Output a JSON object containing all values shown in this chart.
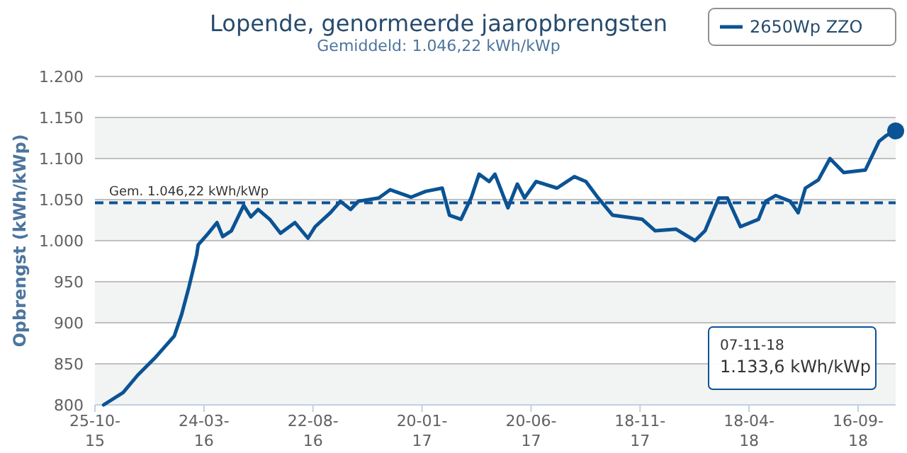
{
  "chart_data": {
    "type": "line",
    "title": "Lopende, genormeerde jaaropbrengsten",
    "subtitle": "Gemiddeld: 1.046,22 kWh/kWp",
    "ylabel": "Opbrengst (kWh/kWp)",
    "xlim": [
      "2015-10-25",
      "2018-11-07"
    ],
    "xticks": [
      {
        "value": "2015-10-25",
        "label": "25-10-\n15"
      },
      {
        "value": "2016-03-24",
        "label": "24-03-\n16"
      },
      {
        "value": "2016-08-22",
        "label": "22-08-\n16"
      },
      {
        "value": "2017-01-20",
        "label": "20-01-\n17"
      },
      {
        "value": "2017-06-20",
        "label": "20-06-\n17"
      },
      {
        "value": "2017-11-18",
        "label": "18-11-\n17"
      },
      {
        "value": "2018-04-18",
        "label": "18-04-\n18"
      },
      {
        "value": "2018-09-16",
        "label": "16-09-\n18"
      }
    ],
    "ylim": [
      800,
      1200
    ],
    "yticks": [
      800,
      850,
      900,
      950,
      {
        "value": 1000,
        "label": "1.000"
      },
      {
        "value": 1050,
        "label": "1.050"
      },
      {
        "value": 1100,
        "label": "1.100"
      },
      {
        "value": 1150,
        "label": "1.150"
      },
      {
        "value": 1200,
        "label": "1.200"
      }
    ],
    "grid": "y",
    "legend": "top right",
    "line_style": "solid",
    "bands": [
      {
        "axis": "y",
        "from": 800,
        "to": 850,
        "color": "#f2f3f3"
      },
      {
        "axis": "y",
        "from": 900,
        "to": 950,
        "color": "#f2f3f3"
      },
      {
        "axis": "y",
        "from": 1000,
        "to": 1050,
        "color": "#f2f3f3"
      },
      {
        "axis": "y",
        "from": 1100,
        "to": 1150,
        "color": "#f2f3f3"
      }
    ],
    "ref_lines": [
      {
        "axis": "y",
        "value": 1046.22,
        "label": "Gem. 1.046,22 kWh/kWp",
        "color": "#0b5394",
        "line_style": "dashed"
      }
    ],
    "annotations": [
      "07-11-18\n1.133,6 kWh/kWp"
    ],
    "series": [
      {
        "name": "2650Wp ZZO",
        "color": "#0b5394",
        "x": [
          "2015-11-06",
          "2015-12-03",
          "2015-12-23",
          "2016-01-17",
          "2016-02-12",
          "2016-02-22",
          "2016-03-03",
          "2016-03-14",
          "2016-03-16",
          "2016-03-30",
          "2016-04-11",
          "2016-04-19",
          "2016-05-01",
          "2016-05-18",
          "2016-05-28",
          "2016-06-07",
          "2016-06-23",
          "2016-07-08",
          "2016-07-28",
          "2016-08-15",
          "2016-08-25",
          "2016-09-15",
          "2016-09-29",
          "2016-10-13",
          "2016-10-24",
          "2016-11-21",
          "2016-12-07",
          "2017-01-05",
          "2017-01-25",
          "2017-02-17",
          "2017-02-27",
          "2017-03-15",
          "2017-03-29",
          "2017-04-09",
          "2017-04-23",
          "2017-05-01",
          "2017-05-19",
          "2017-06-01",
          "2017-06-11",
          "2017-06-27",
          "2017-07-26",
          "2017-08-19",
          "2017-09-04",
          "2017-09-21",
          "2017-10-11",
          "2017-11-21",
          "2017-12-09",
          "2018-01-07",
          "2018-02-02",
          "2018-02-16",
          "2018-03-07",
          "2018-03-19",
          "2018-04-06",
          "2018-05-01",
          "2018-05-11",
          "2018-05-25",
          "2018-06-14",
          "2018-06-25",
          "2018-07-05",
          "2018-07-23",
          "2018-08-08",
          "2018-08-27",
          "2018-09-26",
          "2018-10-15",
          "2018-10-25",
          "2018-11-07"
        ],
        "values": [
          800,
          815,
          836,
          858,
          884,
          910,
          943,
          983,
          995,
          1009,
          1022,
          1005,
          1012,
          1043,
          1029,
          1038,
          1026,
          1009,
          1022,
          1003,
          1017,
          1034,
          1048,
          1038,
          1048,
          1052,
          1062,
          1053,
          1060,
          1064,
          1031,
          1026,
          1052,
          1081,
          1072,
          1081,
          1040,
          1069,
          1052,
          1072,
          1064,
          1078,
          1072,
          1052,
          1031,
          1026,
          1012,
          1014,
          1000,
          1012,
          1052,
          1052,
          1017,
          1026,
          1048,
          1055,
          1048,
          1034,
          1064,
          1074,
          1100,
          1083,
          1086,
          1121,
          1128,
          1133.6
        ]
      },
      {
        "type": "scatter",
        "marker": "circle",
        "color": "#0b5394",
        "x": [
          "2018-11-07"
        ],
        "values": [
          1133.6
        ]
      }
    ]
  }
}
